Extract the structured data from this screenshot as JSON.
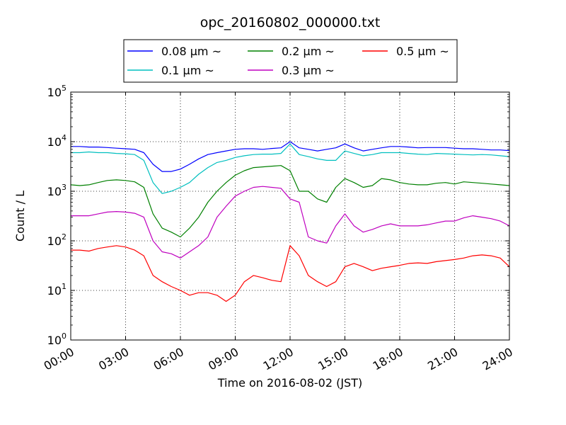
{
  "chart_data": {
    "type": "line",
    "title": "opc_20160802_000000.txt",
    "xlabel": "Time on 2016-08-02 (JST)",
    "ylabel": "Count / L",
    "yscale": "log",
    "ylim": [
      1,
      100000
    ],
    "xlim": [
      "00:00",
      "24:00"
    ],
    "grid": true,
    "legend_position": "top, above plot",
    "x_ticks": [
      "00:00",
      "03:00",
      "06:00",
      "09:00",
      "12:00",
      "15:00",
      "18:00",
      "21:00",
      "24:00"
    ],
    "y_ticks": [
      {
        "base": "10",
        "exp": "0"
      },
      {
        "base": "10",
        "exp": "1"
      },
      {
        "base": "10",
        "exp": "2"
      },
      {
        "base": "10",
        "exp": "3"
      },
      {
        "base": "10",
        "exp": "4"
      },
      {
        "base": "10",
        "exp": "5"
      }
    ],
    "x": [
      "00:00",
      "00:30",
      "01:00",
      "01:30",
      "02:00",
      "02:30",
      "03:00",
      "03:30",
      "04:00",
      "04:30",
      "05:00",
      "05:30",
      "06:00",
      "06:30",
      "07:00",
      "07:30",
      "08:00",
      "08:30",
      "09:00",
      "09:30",
      "10:00",
      "10:30",
      "11:00",
      "11:30",
      "12:00",
      "12:30",
      "13:00",
      "13:30",
      "14:00",
      "14:30",
      "15:00",
      "15:30",
      "16:00",
      "16:30",
      "17:00",
      "17:30",
      "18:00",
      "18:30",
      "19:00",
      "19:30",
      "20:00",
      "20:30",
      "21:00",
      "21:30",
      "22:00",
      "22:30",
      "23:00",
      "23:30",
      "24:00"
    ],
    "series": [
      {
        "name": "0.08 μm ~",
        "color": "#0000ff",
        "values": [
          8000,
          8000,
          7800,
          7800,
          7600,
          7400,
          7200,
          7000,
          6000,
          3500,
          2500,
          2500,
          2800,
          3500,
          4500,
          5500,
          6000,
          6500,
          7000,
          7200,
          7200,
          7000,
          7300,
          7500,
          10000,
          7500,
          7000,
          6500,
          7000,
          7500,
          9000,
          7500,
          6500,
          7000,
          7500,
          8000,
          8000,
          7800,
          7500,
          7600,
          7600,
          7600,
          7400,
          7200,
          7200,
          7000,
          6800,
          6800,
          6600
        ]
      },
      {
        "name": "0.1 μm ~",
        "color": "#00bfbf",
        "values": [
          6000,
          6000,
          6200,
          6000,
          6000,
          5800,
          5700,
          5500,
          4200,
          1500,
          900,
          1000,
          1200,
          1500,
          2200,
          3000,
          3800,
          4200,
          4800,
          5200,
          5500,
          5600,
          5600,
          5800,
          9000,
          5500,
          5000,
          4500,
          4200,
          4200,
          6500,
          5800,
          5200,
          5500,
          6000,
          6000,
          6000,
          5800,
          5600,
          5500,
          5800,
          5700,
          5600,
          5500,
          5400,
          5500,
          5400,
          5200,
          5000
        ]
      },
      {
        "name": "0.2 μm ~",
        "color": "#008000",
        "values": [
          1350,
          1300,
          1350,
          1500,
          1650,
          1700,
          1650,
          1550,
          1200,
          350,
          180,
          150,
          120,
          180,
          300,
          600,
          1000,
          1500,
          2100,
          2600,
          3000,
          3100,
          3200,
          3300,
          2600,
          1000,
          1000,
          700,
          600,
          1200,
          1800,
          1500,
          1200,
          1300,
          1800,
          1700,
          1500,
          1400,
          1350,
          1350,
          1450,
          1500,
          1400,
          1550,
          1500,
          1450,
          1400,
          1350,
          1300
        ]
      },
      {
        "name": "0.3 μm ~",
        "color": "#bf00bf",
        "values": [
          320,
          320,
          320,
          350,
          380,
          390,
          380,
          360,
          300,
          100,
          60,
          55,
          45,
          60,
          80,
          120,
          300,
          500,
          800,
          1000,
          1200,
          1250,
          1200,
          1150,
          700,
          600,
          120,
          100,
          90,
          200,
          350,
          200,
          150,
          170,
          200,
          220,
          200,
          200,
          200,
          210,
          230,
          250,
          250,
          290,
          320,
          300,
          280,
          250,
          200
        ]
      },
      {
        "name": "0.5 μm ~",
        "color": "#ff0000",
        "values": [
          65,
          65,
          62,
          70,
          75,
          80,
          75,
          65,
          50,
          20,
          15,
          12,
          10,
          8,
          9,
          9,
          8,
          6,
          8,
          15,
          20,
          18,
          16,
          15,
          80,
          50,
          20,
          15,
          12,
          15,
          30,
          35,
          30,
          25,
          28,
          30,
          32,
          35,
          36,
          35,
          38,
          40,
          42,
          45,
          50,
          52,
          50,
          45,
          30
        ]
      }
    ]
  }
}
